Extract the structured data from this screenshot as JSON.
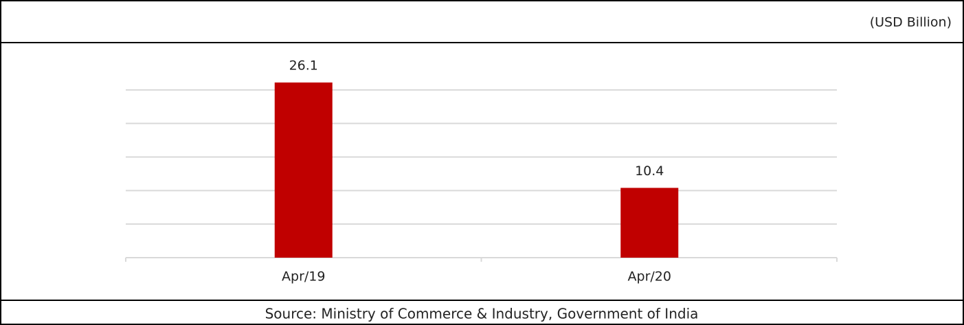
{
  "chart_data": {
    "type": "bar",
    "unit": "(USD Billion)",
    "source": "Source: Ministry of Commerce & Industry, Government of India",
    "categories": [
      "Apr/19",
      "Apr/20"
    ],
    "values": [
      26.1,
      10.4
    ],
    "color": "#c00000",
    "ylim": [
      0,
      30
    ],
    "yticks": [
      0,
      5,
      10,
      15,
      20,
      25
    ],
    "grid": true
  }
}
